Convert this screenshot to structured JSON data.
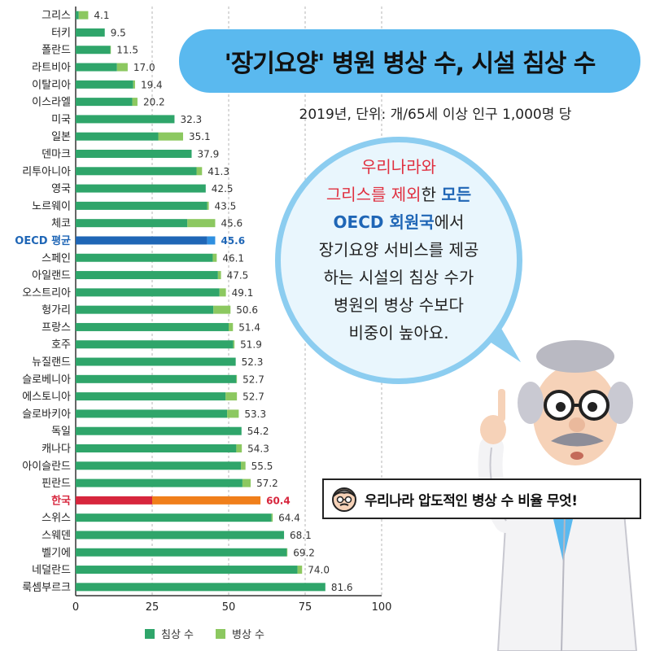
{
  "title": "'장기요양' 병원 병상 수, 시설 침상 수",
  "subtitle": "2019년, 단위: 개/65세 이상 인구 1,000명 당",
  "bubble": {
    "line1": "우리나라와",
    "line2a": "그리스를 제외",
    "line2b": "한 ",
    "line2c": "모든",
    "line3a": "OECD 회원국",
    "line3b": "에서",
    "line4": "장기요양 서비스를 제공",
    "line5": "하는 시설의 침상 수가",
    "line6": "병원의 병상 수보다",
    "line7": "비중이 높아요."
  },
  "note": {
    "text": "우리나라 압도적인 병상 수 비율 무엇!"
  },
  "colors": {
    "bed": "#2fa56a",
    "hospital": "#8cc860",
    "oecd_bed": "#1f66b6",
    "oecd_hospital": "#2f8fe0",
    "kr_bed": "#d7263d",
    "kr_hospital": "#f07f1b"
  },
  "chart_data": {
    "type": "bar",
    "orientation": "horizontal",
    "stacked": true,
    "xlim": [
      0,
      100
    ],
    "xticks": [
      0,
      25,
      50,
      75,
      100
    ],
    "grid": true,
    "legend_position": "bottom",
    "series": [
      {
        "name": "침상 수"
      },
      {
        "name": "병상 수"
      }
    ],
    "rows": [
      {
        "country": "그리스",
        "total": "4.1",
        "bed": 1.0,
        "hospital": 3.1
      },
      {
        "country": "터키",
        "total": "9.5",
        "bed": 9.5,
        "hospital": 0.0
      },
      {
        "country": "폴란드",
        "total": "11.5",
        "bed": 11.3,
        "hospital": 0.2
      },
      {
        "country": "라트비아",
        "total": "17.0",
        "bed": 13.5,
        "hospital": 3.5
      },
      {
        "country": "이탈리아",
        "total": "19.4",
        "bed": 18.8,
        "hospital": 0.6
      },
      {
        "country": "이스라엘",
        "total": "20.2",
        "bed": 18.5,
        "hospital": 1.7
      },
      {
        "country": "미국",
        "total": "32.3",
        "bed": 32.3,
        "hospital": 0.0
      },
      {
        "country": "일본",
        "total": "35.1",
        "bed": 27.0,
        "hospital": 8.1
      },
      {
        "country": "덴마크",
        "total": "37.9",
        "bed": 37.9,
        "hospital": 0.0
      },
      {
        "country": "리투아니아",
        "total": "41.3",
        "bed": 39.5,
        "hospital": 1.8
      },
      {
        "country": "영국",
        "total": "42.5",
        "bed": 42.5,
        "hospital": 0.0
      },
      {
        "country": "노르웨이",
        "total": "43.5",
        "bed": 43.0,
        "hospital": 0.5
      },
      {
        "country": "체코",
        "total": "45.6",
        "bed": 36.5,
        "hospital": 9.1
      },
      {
        "country": "OECD 평균",
        "total": "45.6",
        "bed": 43.0,
        "hospital": 2.6,
        "highlight": "oecd"
      },
      {
        "country": "스페인",
        "total": "46.1",
        "bed": 44.8,
        "hospital": 1.3
      },
      {
        "country": "아일랜드",
        "total": "47.5",
        "bed": 46.5,
        "hospital": 1.0
      },
      {
        "country": "오스트리아",
        "total": "49.1",
        "bed": 47.0,
        "hospital": 2.1
      },
      {
        "country": "헝가리",
        "total": "50.6",
        "bed": 45.0,
        "hospital": 5.6
      },
      {
        "country": "프랑스",
        "total": "51.4",
        "bed": 50.0,
        "hospital": 1.4
      },
      {
        "country": "호주",
        "total": "51.9",
        "bed": 51.5,
        "hospital": 0.4
      },
      {
        "country": "뉴질랜드",
        "total": "52.3",
        "bed": 52.3,
        "hospital": 0.0
      },
      {
        "country": "슬로베니아",
        "total": "52.7",
        "bed": 52.5,
        "hospital": 0.2
      },
      {
        "country": "에스토니아",
        "total": "52.7",
        "bed": 49.0,
        "hospital": 3.7
      },
      {
        "country": "슬로바키아",
        "total": "53.3",
        "bed": 49.5,
        "hospital": 3.8
      },
      {
        "country": "독일",
        "total": "54.2",
        "bed": 54.2,
        "hospital": 0.0
      },
      {
        "country": "캐나다",
        "total": "54.3",
        "bed": 52.5,
        "hospital": 1.8
      },
      {
        "country": "아이슬란드",
        "total": "55.5",
        "bed": 54.0,
        "hospital": 1.5
      },
      {
        "country": "핀란드",
        "total": "57.2",
        "bed": 54.5,
        "hospital": 2.7
      },
      {
        "country": "한국",
        "total": "60.4",
        "bed": 25.0,
        "hospital": 35.4,
        "highlight": "kr"
      },
      {
        "country": "스위스",
        "total": "64.4",
        "bed": 64.0,
        "hospital": 0.4
      },
      {
        "country": "스웨덴",
        "total": "68.1",
        "bed": 68.1,
        "hospital": 0.0
      },
      {
        "country": "벨기에",
        "total": "69.2",
        "bed": 69.0,
        "hospital": 0.2
      },
      {
        "country": "네덜란드",
        "total": "74.0",
        "bed": 72.5,
        "hospital": 1.5
      },
      {
        "country": "룩셈부르크",
        "total": "81.6",
        "bed": 81.6,
        "hospital": 0.0
      }
    ]
  }
}
